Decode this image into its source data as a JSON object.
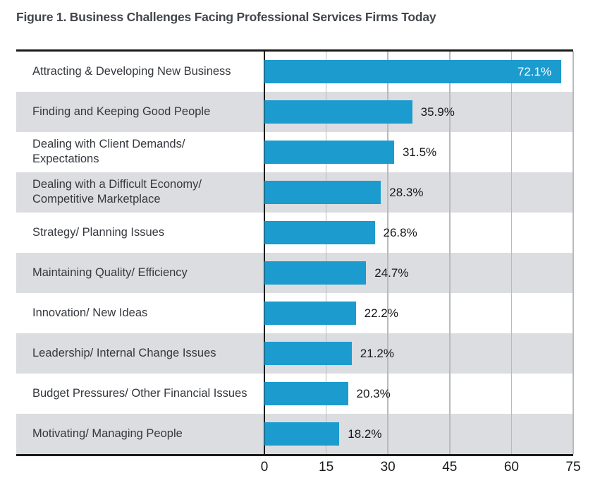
{
  "figure": {
    "title": "Figure 1. Business Challenges Facing Professional Services Firms Today"
  },
  "chart_data": {
    "type": "bar",
    "orientation": "horizontal",
    "title": "Figure 1. Business Challenges Facing Professional Services Firms Today",
    "xlabel": "",
    "ylabel": "",
    "xlim": [
      0,
      75
    ],
    "x_ticks": [
      "0",
      "15",
      "30",
      "45",
      "60",
      "75"
    ],
    "x_tick_values": [
      0,
      15,
      30,
      45,
      60,
      75
    ],
    "grid": true,
    "legend": "none",
    "colors": {
      "bar": "#1b9bce",
      "band": "#dcdde0",
      "gridline": "#b9babc",
      "axis": "#1a1a1a"
    },
    "points": [
      {
        "category": "Attracting & Developing New Business",
        "value": 72.1,
        "display": "72.1%",
        "value_label_position": "inside"
      },
      {
        "category": "Finding and Keeping Good People",
        "value": 35.9,
        "display": "35.9%",
        "value_label_position": "outside"
      },
      {
        "category": "Dealing with Client Demands/ Expectations",
        "value": 31.5,
        "display": "31.5%",
        "value_label_position": "outside"
      },
      {
        "category": "Dealing with a Difficult Economy/ Competitive Marketplace",
        "value": 28.3,
        "display": "28.3%",
        "value_label_position": "outside"
      },
      {
        "category": "Strategy/ Planning Issues",
        "value": 26.8,
        "display": "26.8%",
        "value_label_position": "outside"
      },
      {
        "category": "Maintaining Quality/ Efficiency",
        "value": 24.7,
        "display": "24.7%",
        "value_label_position": "outside"
      },
      {
        "category": "Innovation/ New Ideas",
        "value": 22.2,
        "display": "22.2%",
        "value_label_position": "outside"
      },
      {
        "category": "Leadership/ Internal Change Issues",
        "value": 21.2,
        "display": "21.2%",
        "value_label_position": "outside"
      },
      {
        "category": "Budget Pressures/ Other Financial Issues",
        "value": 20.3,
        "display": "20.3%",
        "value_label_position": "outside"
      },
      {
        "category": "Motivating/ Managing People",
        "value": 18.2,
        "display": "18.2%",
        "value_label_position": "outside"
      }
    ]
  }
}
